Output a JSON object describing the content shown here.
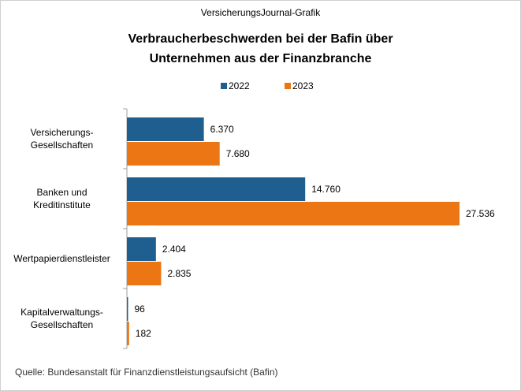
{
  "chart_data": {
    "type": "hbar",
    "supertitle": "VersicherungsJournal-Grafik",
    "title": "Verbraucherbeschwerden  bei der Bafin über\nUnternehmen  aus der Finanzbranche",
    "categories": [
      "Versicherungs-\nGesellschaften",
      "Banken und\nKreditinstitute",
      "Wertpapierdienstleister",
      "Kapitalverwaltungs-\nGesellschaften"
    ],
    "series": [
      {
        "name": "2022",
        "color": "#1f5f8f",
        "values": [
          6370,
          14760,
          2404,
          96
        ],
        "value_labels": [
          "6.370",
          "14.760",
          "2.404",
          "96"
        ]
      },
      {
        "name": "2023",
        "color": "#ec7514",
        "values": [
          7680,
          27536,
          2835,
          182
        ],
        "value_labels": [
          "7.680",
          "27.536",
          "2.835",
          "182"
        ]
      }
    ],
    "source": "Quelle:  Bundesanstalt  für  Finanzdienstleistungsaufsicht  (Bafin)"
  }
}
